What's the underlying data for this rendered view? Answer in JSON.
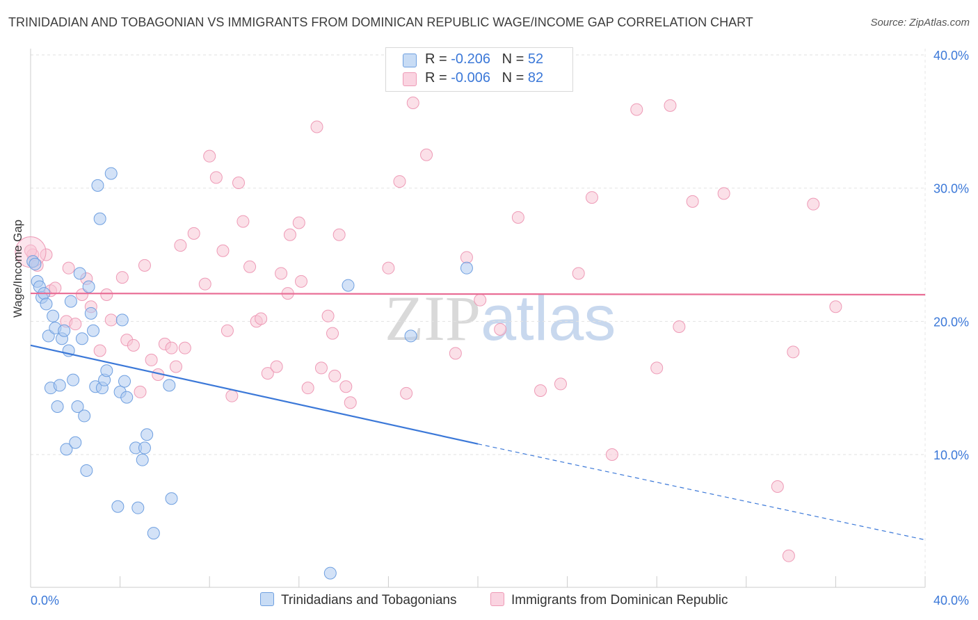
{
  "title": "TRINIDADIAN AND TOBAGONIAN VS IMMIGRANTS FROM DOMINICAN REPUBLIC WAGE/INCOME GAP CORRELATION CHART",
  "source": "Source: ZipAtlas.com",
  "watermark": {
    "zip": "ZIP",
    "atlas": "atlas"
  },
  "legend": {
    "r_label": "R =",
    "n_label": "N =",
    "series1": {
      "r": "-0.206",
      "n": "52"
    },
    "series2": {
      "r": "-0.006",
      "n": "82"
    }
  },
  "bottom_legend": {
    "series1": "Trinidadians and Tobagonians",
    "series2": "Immigrants from Dominican Republic"
  },
  "colors": {
    "series1_fill": "#aecbf0",
    "series1_stroke": "#6e9fe0",
    "series1_line": "#3b78d8",
    "series2_fill": "#f8c6d6",
    "series2_stroke": "#ee9ab6",
    "series2_line": "#e96d95",
    "axis_value": "#3b78d8"
  },
  "chart_data": {
    "type": "scatter",
    "title": "TRINIDADIAN AND TOBAGONIAN VS IMMIGRANTS FROM DOMINICAN REPUBLIC WAGE/INCOME GAP CORRELATION CHART",
    "xlabel": "",
    "ylabel": "Wage/Income Gap",
    "xlim": [
      0,
      40
    ],
    "ylim": [
      0,
      43
    ],
    "x_tick_labels": [
      "0.0%",
      "40.0%"
    ],
    "y_ticks": [
      10,
      20,
      30,
      40
    ],
    "y_tick_labels": [
      "10.0%",
      "20.0%",
      "30.0%",
      "40.0%"
    ],
    "grid": "horizontal dashed",
    "legend_position": "top-center",
    "series": [
      {
        "name": "Trinidadians and Tobagonians",
        "trend": {
          "x0": 0,
          "y0": 18.2,
          "x1": 20,
          "y1": 10.8,
          "dashed_to_x": 40,
          "dashed_to_y": 3.6
        },
        "points": [
          [
            0.1,
            24.5
          ],
          [
            0.2,
            24.3
          ],
          [
            0.3,
            23.0
          ],
          [
            0.4,
            22.6
          ],
          [
            0.5,
            21.8
          ],
          [
            0.6,
            22.1
          ],
          [
            0.7,
            21.3
          ],
          [
            0.8,
            18.9
          ],
          [
            0.9,
            15.0
          ],
          [
            1.0,
            20.4
          ],
          [
            1.1,
            19.5
          ],
          [
            1.2,
            13.6
          ],
          [
            1.3,
            15.2
          ],
          [
            1.4,
            18.7
          ],
          [
            1.5,
            19.3
          ],
          [
            1.6,
            10.4
          ],
          [
            1.7,
            17.8
          ],
          [
            1.8,
            21.5
          ],
          [
            1.9,
            15.6
          ],
          [
            2.0,
            10.9
          ],
          [
            2.1,
            13.6
          ],
          [
            2.2,
            23.6
          ],
          [
            2.3,
            18.7
          ],
          [
            2.4,
            12.9
          ],
          [
            2.5,
            8.8
          ],
          [
            2.6,
            22.6
          ],
          [
            2.7,
            20.6
          ],
          [
            2.8,
            19.3
          ],
          [
            2.9,
            15.1
          ],
          [
            3.0,
            30.2
          ],
          [
            3.1,
            27.7
          ],
          [
            3.2,
            15.0
          ],
          [
            3.3,
            15.6
          ],
          [
            3.4,
            16.3
          ],
          [
            3.6,
            31.1
          ],
          [
            3.9,
            6.1
          ],
          [
            4.0,
            14.7
          ],
          [
            4.1,
            20.1
          ],
          [
            4.2,
            15.5
          ],
          [
            4.3,
            14.3
          ],
          [
            4.7,
            10.5
          ],
          [
            4.8,
            6.0
          ],
          [
            5.0,
            9.6
          ],
          [
            5.1,
            10.5
          ],
          [
            5.2,
            11.5
          ],
          [
            5.5,
            4.1
          ],
          [
            6.2,
            15.2
          ],
          [
            6.3,
            6.7
          ],
          [
            14.2,
            22.7
          ],
          [
            13.4,
            1.1
          ],
          [
            17.0,
            18.9
          ],
          [
            19.5,
            24.0
          ]
        ]
      },
      {
        "name": "Immigrants from Dominican Republic",
        "trend": {
          "x0": 0,
          "y0": 22.1,
          "x1": 40,
          "y1": 22.0
        },
        "points": [
          [
            0.1,
            25.0
          ],
          [
            0.3,
            24.2
          ],
          [
            0.7,
            25.0
          ],
          [
            0.9,
            22.3
          ],
          [
            1.1,
            22.5
          ],
          [
            1.6,
            20.0
          ],
          [
            1.7,
            24.0
          ],
          [
            2.0,
            19.8
          ],
          [
            2.3,
            22.0
          ],
          [
            2.5,
            23.2
          ],
          [
            2.7,
            21.1
          ],
          [
            3.1,
            17.8
          ],
          [
            3.4,
            22.0
          ],
          [
            3.6,
            20.1
          ],
          [
            4.1,
            23.3
          ],
          [
            4.3,
            18.6
          ],
          [
            4.6,
            18.2
          ],
          [
            4.9,
            14.7
          ],
          [
            5.1,
            24.2
          ],
          [
            5.4,
            17.1
          ],
          [
            5.7,
            16.0
          ],
          [
            6.0,
            18.3
          ],
          [
            6.3,
            18.0
          ],
          [
            6.5,
            16.6
          ],
          [
            6.7,
            25.7
          ],
          [
            6.9,
            18.0
          ],
          [
            7.3,
            26.6
          ],
          [
            7.8,
            22.8
          ],
          [
            8.0,
            32.4
          ],
          [
            8.3,
            30.8
          ],
          [
            8.6,
            25.3
          ],
          [
            8.8,
            19.3
          ],
          [
            9.0,
            14.4
          ],
          [
            9.3,
            30.4
          ],
          [
            9.5,
            27.5
          ],
          [
            9.8,
            24.1
          ],
          [
            10.1,
            20.0
          ],
          [
            10.3,
            20.2
          ],
          [
            10.6,
            16.1
          ],
          [
            11.0,
            16.6
          ],
          [
            11.2,
            23.6
          ],
          [
            11.5,
            22.1
          ],
          [
            11.6,
            26.5
          ],
          [
            12.0,
            27.4
          ],
          [
            12.1,
            23.0
          ],
          [
            12.4,
            15.0
          ],
          [
            12.8,
            34.6
          ],
          [
            13.0,
            16.5
          ],
          [
            13.3,
            20.4
          ],
          [
            13.5,
            19.1
          ],
          [
            13.6,
            15.9
          ],
          [
            13.8,
            26.5
          ],
          [
            14.1,
            15.1
          ],
          [
            14.3,
            13.9
          ],
          [
            16.0,
            24.0
          ],
          [
            16.5,
            30.5
          ],
          [
            16.8,
            14.6
          ],
          [
            17.1,
            36.4
          ],
          [
            17.7,
            32.5
          ],
          [
            18.7,
            39.3
          ],
          [
            19.0,
            17.6
          ],
          [
            19.5,
            24.8
          ],
          [
            20.1,
            21.6
          ],
          [
            21.0,
            19.4
          ],
          [
            21.8,
            27.8
          ],
          [
            22.8,
            14.8
          ],
          [
            23.7,
            15.3
          ],
          [
            24.5,
            23.6
          ],
          [
            25.1,
            29.3
          ],
          [
            26.0,
            10.0
          ],
          [
            27.1,
            35.9
          ],
          [
            28.0,
            16.5
          ],
          [
            28.6,
            36.2
          ],
          [
            29.0,
            19.6
          ],
          [
            29.6,
            29.0
          ],
          [
            31.0,
            29.6
          ],
          [
            33.4,
            7.6
          ],
          [
            33.9,
            2.4
          ],
          [
            34.1,
            17.7
          ],
          [
            35.0,
            28.8
          ],
          [
            36.0,
            21.1
          ],
          [
            0.0,
            25.3
          ]
        ]
      }
    ]
  }
}
